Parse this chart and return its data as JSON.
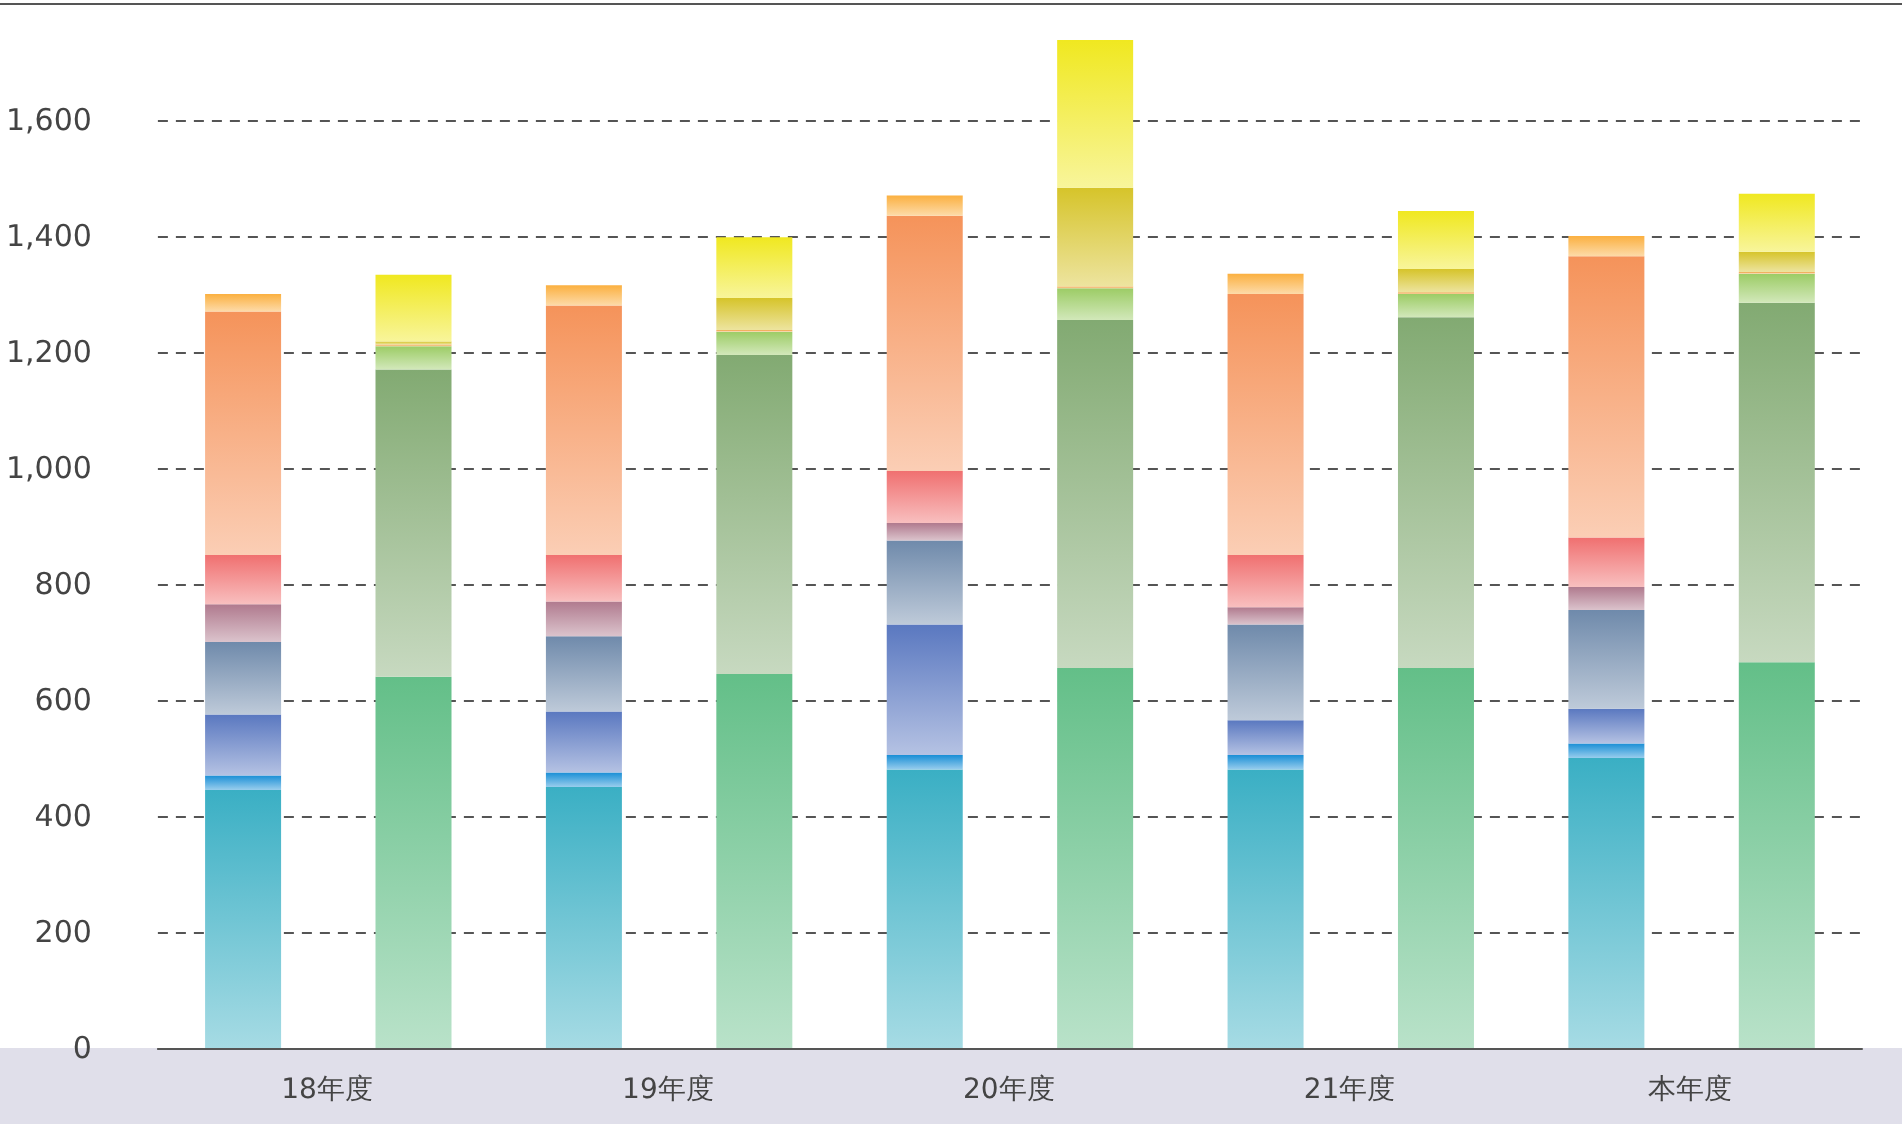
{
  "chart_data": {
    "type": "bar",
    "stacked": true,
    "categories": [
      "18年度",
      null,
      "19年度",
      null,
      "20年度",
      null,
      "21年度",
      null,
      "本年度",
      null
    ],
    "series": [
      {
        "color": "#3aafc4",
        "values": [
          445,
          null,
          450,
          null,
          480,
          null,
          480,
          null,
          500,
          null
        ]
      },
      {
        "color": "#1a8fd6",
        "values": [
          25,
          null,
          25,
          null,
          25,
          null,
          25,
          null,
          25,
          null
        ]
      },
      {
        "color": "#5a78c0",
        "values": [
          105,
          null,
          105,
          null,
          225,
          null,
          60,
          null,
          60,
          null
        ]
      },
      {
        "color": "#6f8aab",
        "values": [
          125,
          null,
          130,
          null,
          145,
          null,
          165,
          null,
          170,
          null
        ]
      },
      {
        "color": "#b07a8e",
        "values": [
          65,
          null,
          60,
          null,
          30,
          null,
          30,
          null,
          40,
          null
        ]
      },
      {
        "color": "#f07070",
        "values": [
          85,
          null,
          80,
          null,
          90,
          null,
          90,
          null,
          85,
          null
        ]
      },
      {
        "color": "#f5935a",
        "values": [
          420,
          null,
          430,
          null,
          440,
          null,
          450,
          null,
          485,
          null
        ]
      },
      {
        "color": "#fbb040",
        "values": [
          30,
          null,
          35,
          null,
          35,
          null,
          35,
          null,
          35,
          null
        ]
      },
      {
        "color": "#63bf88",
        "values": [
          null,
          640,
          null,
          645,
          null,
          655,
          null,
          655,
          null,
          665
        ]
      },
      {
        "color": "#82aa72",
        "values": [
          null,
          530,
          null,
          550,
          null,
          600,
          null,
          605,
          null,
          620
        ]
      },
      {
        "color": "#9ccc65",
        "values": [
          null,
          40,
          null,
          40,
          null,
          55,
          null,
          40,
          null,
          50
        ]
      },
      {
        "color": "#f0a040",
        "values": [
          null,
          3,
          null,
          3,
          null,
          3,
          null,
          3,
          null,
          3
        ]
      },
      {
        "color": "#d6c42a",
        "values": [
          null,
          5,
          null,
          55,
          null,
          170,
          null,
          40,
          null,
          35
        ]
      },
      {
        "color": "#f0e820",
        "values": [
          null,
          115,
          null,
          105,
          null,
          255,
          null,
          100,
          null,
          100
        ]
      }
    ],
    "ylim": [
      0,
      1800
    ],
    "yticks": [
      0,
      200,
      400,
      600,
      800,
      {
        "value": 1000,
        "label": "1,000"
      },
      {
        "value": 1200,
        "label": "1,200"
      },
      {
        "value": 1400,
        "label": "1,400"
      },
      {
        "value": 1600,
        "label": "1,600"
      }
    ],
    "grid": "y"
  }
}
